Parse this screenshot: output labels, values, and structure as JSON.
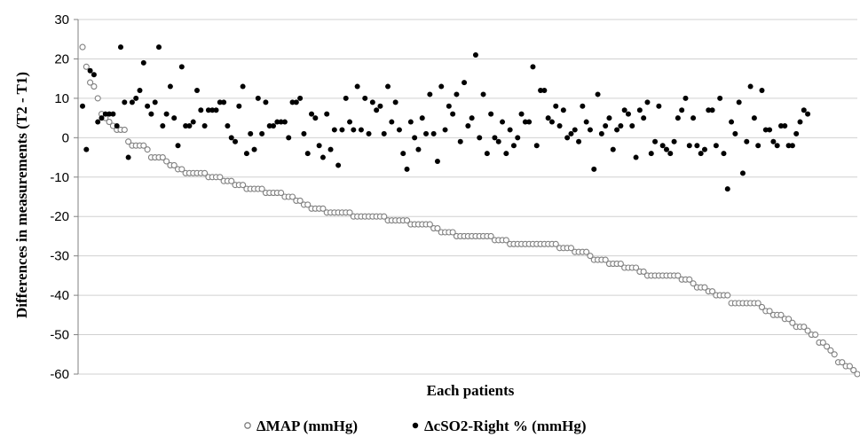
{
  "chart_data": {
    "type": "scatter",
    "title": "",
    "xlabel": "Each patients",
    "ylabel": "Differences in measurements (T2 - T1)",
    "ylim": [
      -60,
      30
    ],
    "yticks": [
      30,
      20,
      10,
      0,
      -10,
      -20,
      -30,
      -40,
      -50,
      -60
    ],
    "grid": true,
    "legend_position": "bottom",
    "series": [
      {
        "name": "ΔMAP (mmHg)",
        "marker": "open-circle",
        "color": "#808080",
        "values": [
          23,
          18,
          14,
          13,
          10,
          6,
          5,
          4,
          3,
          2,
          2,
          2,
          -1,
          -2,
          -2,
          -2,
          -2,
          -3,
          -5,
          -5,
          -5,
          -5,
          -6,
          -7,
          -7,
          -8,
          -8,
          -9,
          -9,
          -9,
          -9,
          -9,
          -9,
          -10,
          -10,
          -10,
          -10,
          -11,
          -11,
          -11,
          -12,
          -12,
          -12,
          -13,
          -13,
          -13,
          -13,
          -13,
          -14,
          -14,
          -14,
          -14,
          -14,
          -15,
          -15,
          -15,
          -16,
          -16,
          -17,
          -17,
          -18,
          -18,
          -18,
          -18,
          -19,
          -19,
          -19,
          -19,
          -19,
          -19,
          -19,
          -20,
          -20,
          -20,
          -20,
          -20,
          -20,
          -20,
          -20,
          -20,
          -21,
          -21,
          -21,
          -21,
          -21,
          -21,
          -22,
          -22,
          -22,
          -22,
          -22,
          -22,
          -23,
          -23,
          -24,
          -24,
          -24,
          -24,
          -25,
          -25,
          -25,
          -25,
          -25,
          -25,
          -25,
          -25,
          -25,
          -25,
          -26,
          -26,
          -26,
          -26,
          -27,
          -27,
          -27,
          -27,
          -27,
          -27,
          -27,
          -27,
          -27,
          -27,
          -27,
          -27,
          -27,
          -28,
          -28,
          -28,
          -28,
          -29,
          -29,
          -29,
          -29,
          -30,
          -31,
          -31,
          -31,
          -31,
          -32,
          -32,
          -32,
          -32,
          -33,
          -33,
          -33,
          -33,
          -34,
          -34,
          -35,
          -35,
          -35,
          -35,
          -35,
          -35,
          -35,
          -35,
          -35,
          -36,
          -36,
          -36,
          -37,
          -38,
          -38,
          -38,
          -39,
          -39,
          -40,
          -40,
          -40,
          -40,
          -42,
          -42,
          -42,
          -42,
          -42,
          -42,
          -42,
          -42,
          -43,
          -44,
          -44,
          -45,
          -45,
          -45,
          -46,
          -46,
          -47,
          -48,
          -48,
          -48,
          -49,
          -50,
          -50,
          -52,
          -52,
          -53,
          -54,
          -55,
          -57,
          -57,
          -58,
          -58,
          -59,
          -60
        ]
      },
      {
        "name": "ΔcSO2-Right % (mmHg)",
        "marker": "filled-circle",
        "color": "#000000",
        "values": [
          8,
          -3,
          17,
          16,
          4,
          5,
          6,
          6,
          6,
          3,
          23,
          9,
          -5,
          9,
          10,
          12,
          19,
          8,
          6,
          9,
          23,
          3,
          6,
          13,
          5,
          -2,
          18,
          3,
          3,
          4,
          12,
          7,
          3,
          7,
          7,
          7,
          9,
          9,
          3,
          0,
          -1,
          8,
          13,
          -4,
          1,
          -3,
          10,
          1,
          9,
          3,
          3,
          4,
          4,
          4,
          0,
          9,
          9,
          10,
          1,
          -4,
          6,
          5,
          -2,
          -5,
          6,
          -3,
          2,
          -7,
          2,
          10,
          4,
          2,
          13,
          2,
          10,
          1,
          9,
          7,
          8,
          1,
          13,
          4,
          9,
          2,
          -4,
          -8,
          4,
          0,
          -3,
          5,
          1,
          11,
          1,
          -6,
          13,
          2,
          8,
          6,
          11,
          -1,
          14,
          3,
          5,
          21,
          0,
          11,
          -4,
          6,
          0,
          -1,
          4,
          -4,
          2,
          -2,
          0,
          6,
          4,
          4,
          18,
          -2,
          12,
          12,
          5,
          4,
          8,
          3,
          7,
          0,
          1,
          2,
          -1,
          8,
          4,
          2,
          -8,
          11,
          1,
          3,
          5,
          -3,
          2,
          3,
          7,
          6,
          3,
          -5,
          7,
          5,
          9,
          -4,
          -1,
          8,
          -2,
          -3,
          -4,
          -1,
          5,
          7,
          10,
          -2,
          5,
          -2,
          -4,
          -3,
          7,
          7,
          -2,
          10,
          -4,
          -13,
          4,
          1,
          9,
          -9,
          -1,
          13,
          5,
          -2,
          12,
          2,
          2,
          -1,
          -2,
          3,
          3,
          -2,
          -2,
          1,
          4,
          7,
          6
        ]
      }
    ]
  }
}
